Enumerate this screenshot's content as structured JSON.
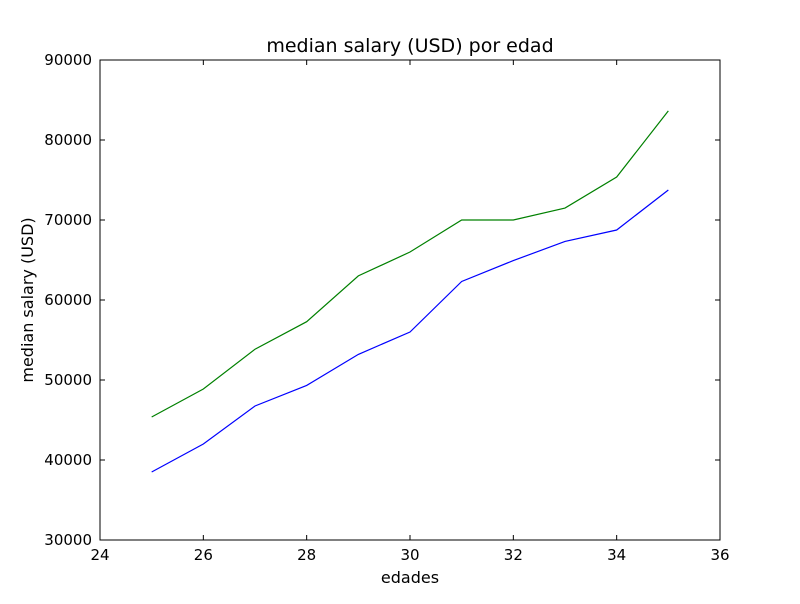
{
  "chart_data": {
    "type": "line",
    "title": "median salary (USD) por edad",
    "xlabel": "edades",
    "ylabel": "median salary (USD)",
    "xlim": [
      24,
      36
    ],
    "ylim": [
      30000,
      90000
    ],
    "xticks": [
      24,
      26,
      28,
      30,
      32,
      34,
      36
    ],
    "yticks": [
      30000,
      40000,
      50000,
      60000,
      70000,
      80000,
      90000
    ],
    "grid": false,
    "x": [
      25,
      26,
      27,
      28,
      29,
      30,
      31,
      32,
      33,
      34,
      35
    ],
    "series": [
      {
        "color": "#0000ff",
        "values": [
          38496,
          42000,
          46752,
          49320,
          53200,
          56000,
          62316,
          64928,
          67317,
          68748,
          73752
        ]
      },
      {
        "color": "#008000",
        "values": [
          45372,
          48876,
          53850,
          57287,
          63016,
          65998,
          70003,
          70000,
          71496,
          75370,
          83640
        ]
      }
    ]
  }
}
